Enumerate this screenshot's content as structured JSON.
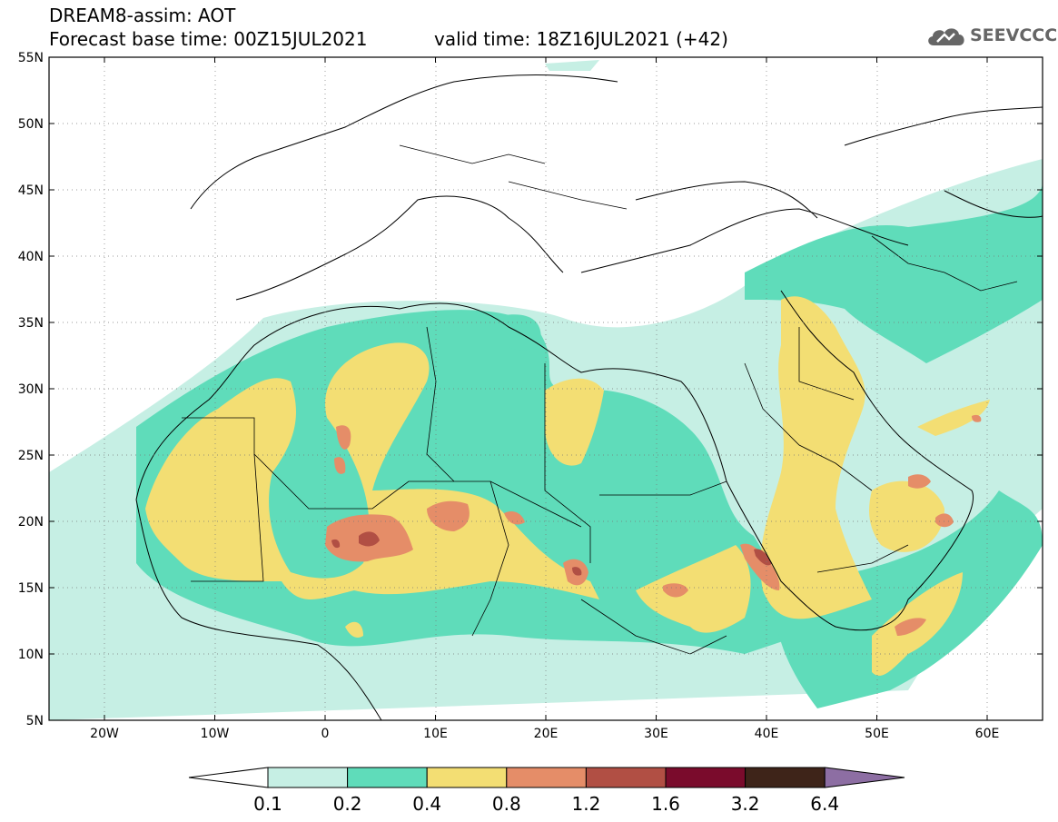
{
  "header": {
    "model_title": "DREAM8-assim: AOT",
    "base_time": "Forecast base time: 00Z15JUL2021",
    "valid_time": "valid time: 18Z16JUL2021 (+42)",
    "logo_text": "SEEVCCC"
  },
  "map": {
    "lat_labels": [
      "55N",
      "50N",
      "45N",
      "40N",
      "35N",
      "30N",
      "25N",
      "20N",
      "15N",
      "10N",
      "5N"
    ],
    "lon_labels": [
      "20W",
      "10W",
      "0",
      "10E",
      "20E",
      "30E",
      "40E",
      "50E",
      "60E"
    ]
  },
  "legend": {
    "labels": [
      "0.1",
      "0.2",
      "0.4",
      "0.8",
      "1.2",
      "1.6",
      "3.2",
      "6.4"
    ],
    "colors": {
      "below": "#ffffff",
      "c1": "#c6efe4",
      "c2": "#5fdcba",
      "c3": "#f3de73",
      "c4": "#e58d68",
      "c5": "#b14f44",
      "c6": "#7a0b2c",
      "c7": "#3e2419",
      "above": "#8d6ea3"
    }
  }
}
